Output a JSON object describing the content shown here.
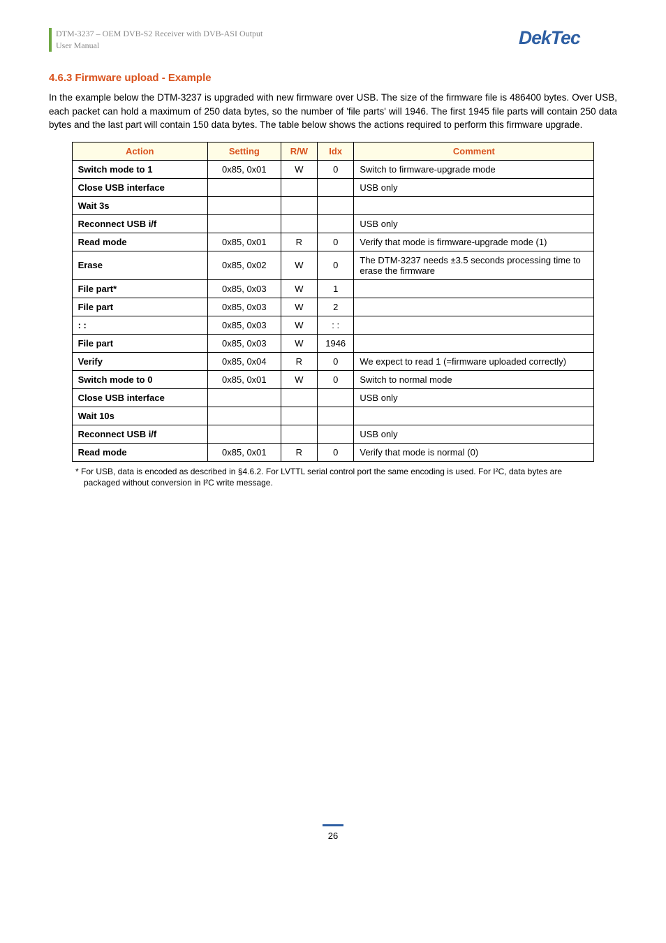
{
  "header": {
    "product_line": "DTM-3237 – OEM DVB-S2 Receiver with DVB-ASI Output",
    "doc_type": "User Manual",
    "logo_text": "DekTec",
    "logo_color": "#2e5fa3"
  },
  "section": {
    "number": "4.6.3",
    "title": "Firmware upload - Example",
    "heading_color": "#d9531e"
  },
  "paragraph": "In the example below the DTM-3237 is upgraded with new firmware over USB. The size of the firmware file is 486400 bytes. Over USB, each packet can hold a maximum of 250 data bytes, so the number of 'file parts' will 1946. The first 1945 file parts will contain 250 data bytes and the last part will contain 150 data bytes. The table below shows the actions required to perform this firmware upgrade.",
  "table": {
    "header_bg": "#fffde6",
    "header_color": "#d9531e",
    "border_color": "#000000",
    "columns": [
      "Action",
      "Setting",
      "R/W",
      "Idx",
      "Comment"
    ],
    "col_widths": [
      "26%",
      "14%",
      "7%",
      "7%",
      "46%"
    ],
    "rows": [
      {
        "action": "Switch mode to 1",
        "setting": "0x85, 0x01",
        "rw": "W",
        "idx": "0",
        "comment": "Switch to firmware-upgrade mode"
      },
      {
        "action": "Close USB interface",
        "setting": "",
        "rw": "",
        "idx": "",
        "comment": "USB only"
      },
      {
        "action": "Wait 3s",
        "setting": "",
        "rw": "",
        "idx": "",
        "comment": ""
      },
      {
        "action": "Reconnect USB i/f",
        "setting": "",
        "rw": "",
        "idx": "",
        "comment": "USB only"
      },
      {
        "action": "Read mode",
        "setting": "0x85, 0x01",
        "rw": "R",
        "idx": "0",
        "comment": "Verify that mode is firmware-upgrade mode (1)"
      },
      {
        "action": "Erase",
        "setting": "0x85, 0x02",
        "rw": "W",
        "idx": "0",
        "comment": "The DTM-3237 needs ±3.5 seconds processing time to erase the firmware"
      },
      {
        "action": "File part*",
        "setting": "0x85, 0x03",
        "rw": "W",
        "idx": "1",
        "comment": ""
      },
      {
        "action": "File part",
        "setting": "0x85, 0x03",
        "rw": "W",
        "idx": "2",
        "comment": ""
      },
      {
        "action": ":   :",
        "setting": "0x85, 0x03",
        "rw": "W",
        "idx": ":   :",
        "comment": ""
      },
      {
        "action": "File part",
        "setting": "0x85, 0x03",
        "rw": "W",
        "idx": "1946",
        "comment": ""
      },
      {
        "action": "Verify",
        "setting": "0x85, 0x04",
        "rw": "R",
        "idx": "0",
        "comment": "We expect to read 1 (=firmware uploaded correctly)"
      },
      {
        "action": "Switch mode to 0",
        "setting": "0x85, 0x01",
        "rw": "W",
        "idx": "0",
        "comment": "Switch to normal mode"
      },
      {
        "action": "Close USB interface",
        "setting": "",
        "rw": "",
        "idx": "",
        "comment": "USB only"
      },
      {
        "action": "Wait 10s",
        "setting": "",
        "rw": "",
        "idx": "",
        "comment": ""
      },
      {
        "action": "Reconnect USB i/f",
        "setting": "",
        "rw": "",
        "idx": "",
        "comment": "USB only"
      },
      {
        "action": "Read mode",
        "setting": "0x85, 0x01",
        "rw": "R",
        "idx": "0",
        "comment": "Verify that mode is normal (0)"
      }
    ]
  },
  "footnote": "*   For USB, data is encoded as described in §4.6.2. For LVTTL serial control port the same encoding is used. For I²C, data bytes are packaged without conversion in I²C write message.",
  "footer": {
    "page_number": "26",
    "line_color": "#2e5fa3"
  }
}
